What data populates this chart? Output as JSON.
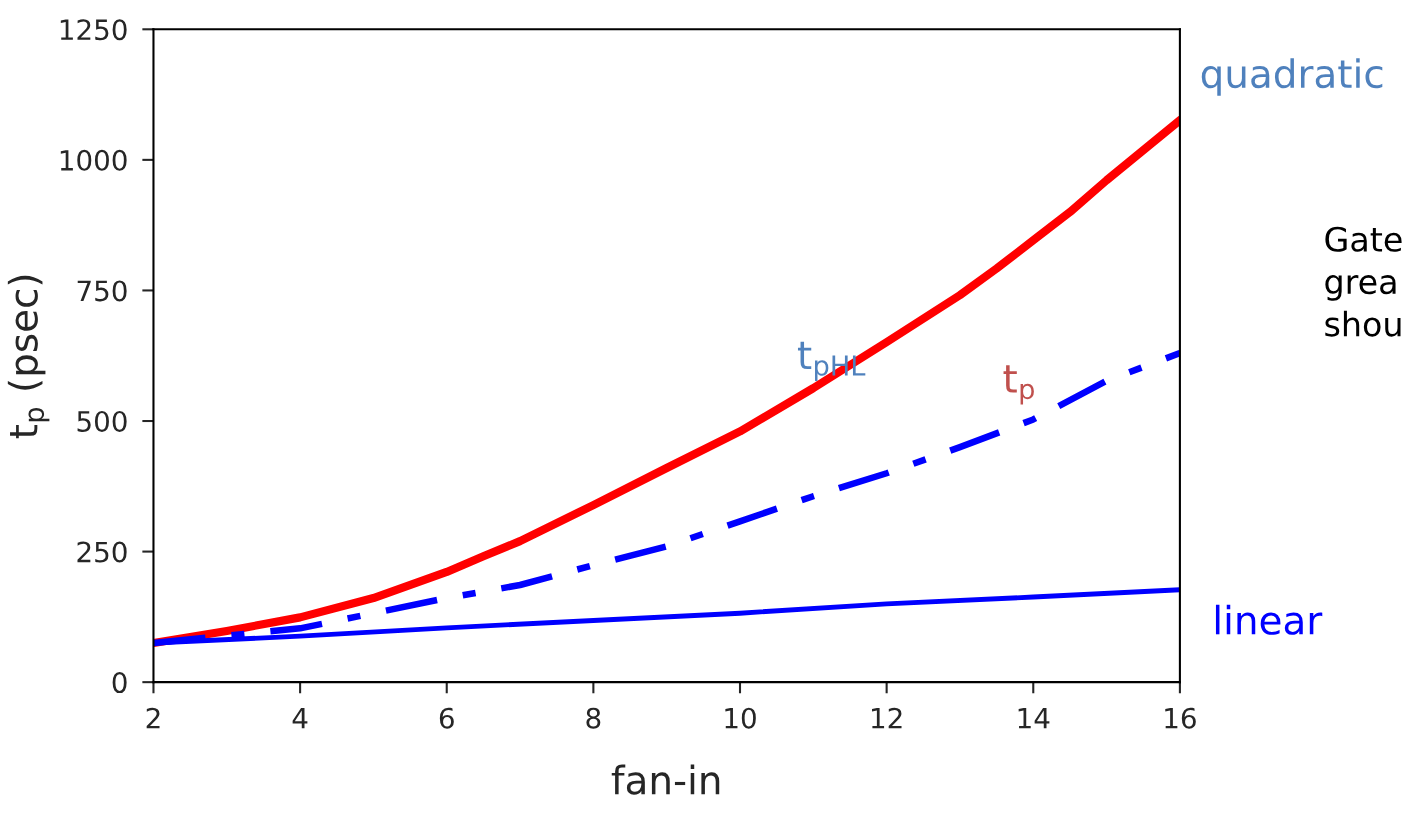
{
  "chart_data": {
    "type": "line",
    "xlabel": "fan-in",
    "ylabel": "t$_{p}$ (psec)",
    "xlim": [
      2,
      16
    ],
    "xticks": [
      2,
      4,
      6,
      8,
      10,
      12,
      14,
      16
    ],
    "ylim": [
      0,
      1250
    ],
    "yticks": [
      0,
      250,
      500,
      750,
      1000,
      1250
    ],
    "grid": false,
    "marker": "none",
    "series": [
      {
        "color": "#ff0000",
        "line_style": "solid",
        "x": [
          2,
          3,
          4,
          5,
          6,
          6.5,
          7,
          8,
          9,
          10,
          11,
          12,
          13,
          13.5,
          14,
          14.5,
          15,
          16
        ],
        "values": [
          75,
          98,
          124,
          161,
          211,
          241,
          270,
          339,
          410,
          480,
          563,
          651,
          741,
          792,
          846,
          900,
          961,
          1076
        ]
      },
      {
        "color": "#0000ff",
        "line_style": "dashed",
        "x": [
          2,
          4,
          6,
          7,
          8,
          9,
          10,
          11,
          12,
          13,
          14,
          15,
          16
        ],
        "values": [
          75,
          103,
          161,
          186,
          224,
          260,
          308,
          356,
          400,
          450,
          503,
          577,
          630
        ]
      },
      {
        "color": "#0000ff",
        "line_style": "solid",
        "x": [
          2,
          4,
          6,
          8,
          10,
          12,
          14,
          16
        ],
        "values": [
          75,
          88,
          104,
          118,
          132,
          150,
          163,
          177
        ]
      }
    ],
    "annotations": [
      "t$_{pHL}$",
      "t$_{p}$",
      "quadratic",
      "linear",
      "Gate\ngrea\nshou"
    ]
  }
}
